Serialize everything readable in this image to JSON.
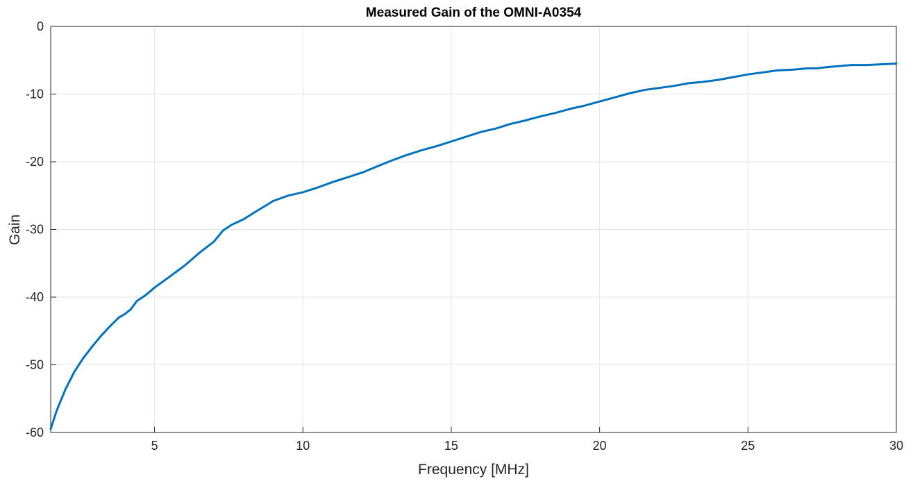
{
  "chart_data": {
    "type": "line",
    "title": "Measured Gain of the OMNI-A0354",
    "xlabel": "Frequency [MHz]",
    "ylabel": "Gain",
    "xlim": [
      1.5,
      30
    ],
    "ylim": [
      -60,
      0
    ],
    "xticks": [
      5,
      10,
      15,
      20,
      25,
      30
    ],
    "yticks": [
      0,
      -10,
      -20,
      -30,
      -40,
      -50,
      -60
    ],
    "grid": true,
    "line_color": "#0072BD",
    "grid_color": "#e6e6e6",
    "axis_color": "#262626",
    "series": [
      {
        "x": [
          1.5,
          1.7,
          2.0,
          2.3,
          2.6,
          2.9,
          3.2,
          3.5,
          3.8,
          4.0,
          4.2,
          4.4,
          4.7,
          5.0,
          5.5,
          6.0,
          6.5,
          7.0,
          7.3,
          7.6,
          8.0,
          8.4,
          8.7,
          9.0,
          9.5,
          10.0,
          10.5,
          11.0,
          11.5,
          12.0,
          12.5,
          13.0,
          13.5,
          14.0,
          14.5,
          15.0,
          15.5,
          16.0,
          16.5,
          17.0,
          17.5,
          18.0,
          18.5,
          19.0,
          19.5,
          20.0,
          20.5,
          21.0,
          21.5,
          22.0,
          22.5,
          23.0,
          23.5,
          24.0,
          24.5,
          25.0,
          25.5,
          26.0,
          26.5,
          27.0,
          27.3,
          27.7,
          28.0,
          28.5,
          29.0,
          29.5,
          30.0
        ],
        "y": [
          -59.5,
          -56.8,
          -53.6,
          -51.0,
          -49.0,
          -47.3,
          -45.7,
          -44.3,
          -43.0,
          -42.5,
          -41.8,
          -40.6,
          -39.7,
          -38.6,
          -37.0,
          -35.4,
          -33.5,
          -31.8,
          -30.2,
          -29.3,
          -28.5,
          -27.4,
          -26.6,
          -25.8,
          -25.0,
          -24.5,
          -23.8,
          -23.0,
          -22.3,
          -21.6,
          -20.7,
          -19.8,
          -19.0,
          -18.3,
          -17.7,
          -17.0,
          -16.3,
          -15.6,
          -15.1,
          -14.4,
          -13.9,
          -13.3,
          -12.8,
          -12.2,
          -11.7,
          -11.1,
          -10.5,
          -9.9,
          -9.4,
          -9.1,
          -8.8,
          -8.4,
          -8.2,
          -7.9,
          -7.5,
          -7.1,
          -6.8,
          -6.5,
          -6.4,
          -6.2,
          -6.2,
          -6.0,
          -5.9,
          -5.7,
          -5.7,
          -5.6,
          -5.5
        ]
      }
    ]
  }
}
